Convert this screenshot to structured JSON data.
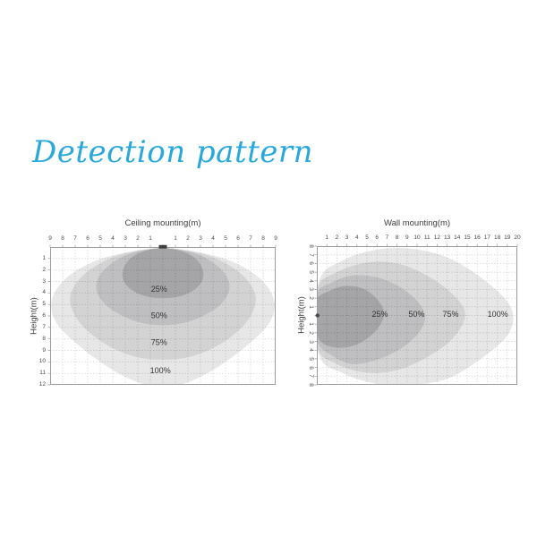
{
  "page": {
    "title": "Detection pattern",
    "title_color": "#29A8DB",
    "background": "#ffffff"
  },
  "chart_data": [
    {
      "type": "area",
      "title": "Ceiling mounting(m)",
      "ylabel": "Height(m)",
      "orientation": "ceiling-mounted-sensor-top-center",
      "x_range": [
        -9,
        9
      ],
      "y_range": [
        0,
        12
      ],
      "x_ticks": {
        "values": [
          -9,
          -8,
          -7,
          -6,
          -5,
          -4,
          -3,
          -2,
          -1,
          0,
          1,
          2,
          3,
          4,
          5,
          6,
          7,
          8,
          9
        ],
        "labels": [
          "9",
          "8",
          "7",
          "6",
          "5",
          "4",
          "3",
          "2",
          "1",
          "",
          "1",
          "2",
          "3",
          "4",
          "5",
          "6",
          "7",
          "8",
          "9"
        ]
      },
      "y_ticks": {
        "values": [
          1,
          2,
          3,
          4,
          5,
          6,
          7,
          8,
          9,
          10,
          11,
          12
        ],
        "labels": [
          "1",
          "2",
          "3",
          "4",
          "5",
          "6",
          "7",
          "8",
          "9",
          "10",
          "11",
          "12"
        ]
      },
      "grid": true,
      "border_color": "#9c9c9c",
      "grid_color_rgba": "rgba(0,0,0,0.16)",
      "sensor": {
        "shape": "rect",
        "x": 0,
        "y": 0,
        "color": "#3d3d3d"
      },
      "zones": [
        {
          "name": "100%",
          "color": "#e7e7e8",
          "label_pos": {
            "x": -0.2,
            "y": 10.75
          },
          "points": [
            [
              0,
              0.1
            ],
            [
              3.5,
              0.6
            ],
            [
              6,
              1.5
            ],
            [
              8,
              3
            ],
            [
              8.9,
              4.8
            ],
            [
              8.5,
              6.6
            ],
            [
              7,
              8.3
            ],
            [
              5,
              10
            ],
            [
              3,
              11.3
            ],
            [
              1.2,
              12
            ],
            [
              -1.2,
              12
            ],
            [
              -3,
              11.3
            ],
            [
              -5,
              10
            ],
            [
              -7,
              8.3
            ],
            [
              -8.5,
              6.6
            ],
            [
              -8.9,
              4.8
            ],
            [
              -8,
              3
            ],
            [
              -6,
              1.5
            ],
            [
              -3.5,
              0.6
            ]
          ]
        },
        {
          "name": "75%",
          "color": "#d3d3d4",
          "label_pos": {
            "x": -0.3,
            "y": 8.3
          },
          "points": [
            [
              0,
              0.1
            ],
            [
              2.8,
              0.5
            ],
            [
              4.8,
              1.3
            ],
            [
              6.5,
              2.6
            ],
            [
              7.4,
              4.3
            ],
            [
              7,
              6
            ],
            [
              5.8,
              7.5
            ],
            [
              4,
              8.8
            ],
            [
              2,
              9.6
            ],
            [
              0,
              9.8
            ],
            [
              -2,
              9.6
            ],
            [
              -4,
              8.8
            ],
            [
              -5.8,
              7.5
            ],
            [
              -7,
              6
            ],
            [
              -7.4,
              4.3
            ],
            [
              -6.5,
              2.6
            ],
            [
              -4.8,
              1.3
            ],
            [
              -2.8,
              0.5
            ]
          ]
        },
        {
          "name": "50%",
          "color": "#bfbfc1",
          "label_pos": {
            "x": -0.3,
            "y": 5.95
          },
          "points": [
            [
              0,
              0.1
            ],
            [
              2.2,
              0.45
            ],
            [
              3.8,
              1.2
            ],
            [
              5,
              2.4
            ],
            [
              5.3,
              3.7
            ],
            [
              4.6,
              5
            ],
            [
              3.2,
              6
            ],
            [
              1.7,
              6.6
            ],
            [
              0,
              6.8
            ],
            [
              -1.7,
              6.6
            ],
            [
              -3.2,
              6
            ],
            [
              -4.6,
              5
            ],
            [
              -5.3,
              3.7
            ],
            [
              -5,
              2.4
            ],
            [
              -3.8,
              1.2
            ],
            [
              -2.2,
              0.45
            ]
          ]
        },
        {
          "name": "25%",
          "color": "#a5a5a7",
          "label_pos": {
            "x": -0.3,
            "y": 3.65
          },
          "points": [
            [
              0,
              0.1
            ],
            [
              1.6,
              0.4
            ],
            [
              2.7,
              1.1
            ],
            [
              3.2,
              2.1
            ],
            [
              3.1,
              3
            ],
            [
              2.4,
              3.8
            ],
            [
              1.3,
              4.3
            ],
            [
              0,
              4.45
            ],
            [
              -1.3,
              4.3
            ],
            [
              -2.4,
              3.8
            ],
            [
              -3.1,
              3
            ],
            [
              -3.2,
              2.1
            ],
            [
              -2.7,
              1.1
            ],
            [
              -1.6,
              0.4
            ]
          ]
        }
      ]
    },
    {
      "type": "area",
      "title": "Wall mounting(m)",
      "ylabel": "Height(m)",
      "orientation": "wall-mounted-sensor-left-center",
      "x_range": [
        0,
        20
      ],
      "y_range": [
        -8,
        8
      ],
      "x_ticks": {
        "values": [
          1,
          2,
          3,
          4,
          5,
          6,
          7,
          8,
          9,
          10,
          11,
          12,
          13,
          14,
          15,
          16,
          17,
          18,
          19,
          20
        ],
        "labels": [
          "1",
          "2",
          "3",
          "4",
          "5",
          "6",
          "7",
          "8",
          "9",
          "10",
          "11",
          "12",
          "13",
          "14",
          "15",
          "16",
          "17",
          "18",
          "19",
          "20"
        ]
      },
      "y_ticks": {
        "values": [
          -8,
          -7,
          -6,
          -5,
          -4,
          -3,
          -2,
          -1,
          0,
          1,
          2,
          3,
          4,
          5,
          6,
          7,
          8
        ],
        "labels": [
          "8",
          "7",
          "6",
          "5",
          "4",
          "3",
          "2",
          "1",
          "",
          "1",
          "2",
          "3",
          "4",
          "5",
          "6",
          "7",
          "8"
        ]
      },
      "grid": true,
      "border_color": "#9c9c9c",
      "grid_color_rgba": "rgba(0,0,0,0.16)",
      "sensor": {
        "shape": "dot",
        "x": 0,
        "y": 0,
        "color": "#4a4a4a"
      },
      "zones": [
        {
          "name": "100%",
          "color": "#e7e7e8",
          "label_pos": {
            "x": 18.05,
            "y": -0.15
          },
          "points": [
            [
              0.2,
              -3.8
            ],
            [
              2.5,
              -6.3
            ],
            [
              6,
              -7.6
            ],
            [
              9.5,
              -7.7
            ],
            [
              13,
              -6.7
            ],
            [
              16,
              -4.7
            ],
            [
              18.8,
              -1.9
            ],
            [
              19.6,
              0.3
            ],
            [
              18.8,
              2.6
            ],
            [
              16,
              5.3
            ],
            [
              13,
              7.3
            ],
            [
              9.5,
              8
            ],
            [
              6,
              7.9
            ],
            [
              2.5,
              6.6
            ],
            [
              0.2,
              4.4
            ]
          ]
        },
        {
          "name": "75%",
          "color": "#d3d3d4",
          "label_pos": {
            "x": 13.35,
            "y": -0.15
          },
          "points": [
            [
              0,
              -3
            ],
            [
              2,
              -5
            ],
            [
              5,
              -6.1
            ],
            [
              8,
              -6
            ],
            [
              11,
              -4.6
            ],
            [
              13.6,
              -2.4
            ],
            [
              14.8,
              -0.1
            ],
            [
              13.6,
              2.6
            ],
            [
              11,
              4.8
            ],
            [
              8,
              6.3
            ],
            [
              5,
              6.6
            ],
            [
              2,
              5.6
            ],
            [
              0,
              3.6
            ]
          ]
        },
        {
          "name": "50%",
          "color": "#bfbfc1",
          "label_pos": {
            "x": 9.95,
            "y": -0.15
          },
          "points": [
            [
              0,
              -2.4
            ],
            [
              1.5,
              -3.8
            ],
            [
              3.5,
              -4.6
            ],
            [
              6,
              -4.4
            ],
            [
              8.4,
              -3.2
            ],
            [
              10.2,
              -1.4
            ],
            [
              10.8,
              0.3
            ],
            [
              10.1,
              2.1
            ],
            [
              8.4,
              3.8
            ],
            [
              6,
              5.1
            ],
            [
              3.5,
              5.6
            ],
            [
              1.5,
              4.6
            ],
            [
              0,
              2.8
            ]
          ]
        },
        {
          "name": "25%",
          "color": "#a5a5a7",
          "label_pos": {
            "x": 6.3,
            "y": -0.15
          },
          "points": [
            [
              0,
              -1.8
            ],
            [
              1.2,
              -2.8
            ],
            [
              2.8,
              -3.4
            ],
            [
              4.6,
              -3.1
            ],
            [
              6,
              -1.9
            ],
            [
              6.7,
              -0.4
            ],
            [
              6.3,
              1.1
            ],
            [
              5.2,
              2.5
            ],
            [
              3.6,
              3.5
            ],
            [
              1.8,
              3.7
            ],
            [
              0.4,
              3
            ],
            [
              0,
              1.5
            ]
          ]
        }
      ]
    }
  ]
}
